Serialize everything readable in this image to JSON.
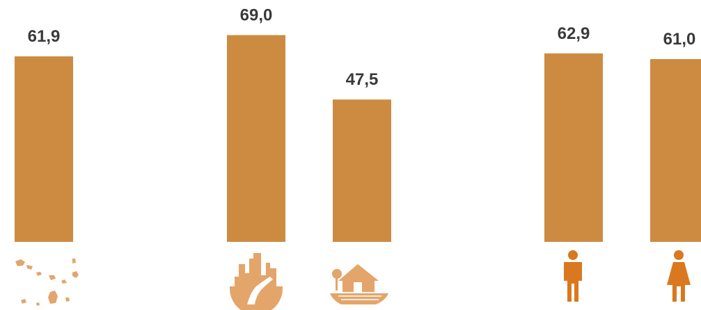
{
  "chart_data": {
    "type": "bar",
    "categories": [
      "",
      "",
      "",
      "",
      ""
    ],
    "category_icons": [
      "cape-verde-islands-map-icon",
      "urban-city-icon",
      "rural-house-field-icon",
      "male-person-icon",
      "female-person-icon"
    ],
    "values": [
      61.9,
      69.0,
      47.5,
      62.9,
      61.0
    ],
    "value_labels": [
      "61,9",
      "69,0",
      "47,5",
      "62,9",
      "61,0"
    ],
    "ylim": [
      0,
      75
    ],
    "grid": false,
    "legend": "none",
    "bar_color": "#CD8B42",
    "icon_color": "#E3A56A",
    "person_icon_color": "#D9781F",
    "label_color": "#3a3a3a"
  }
}
